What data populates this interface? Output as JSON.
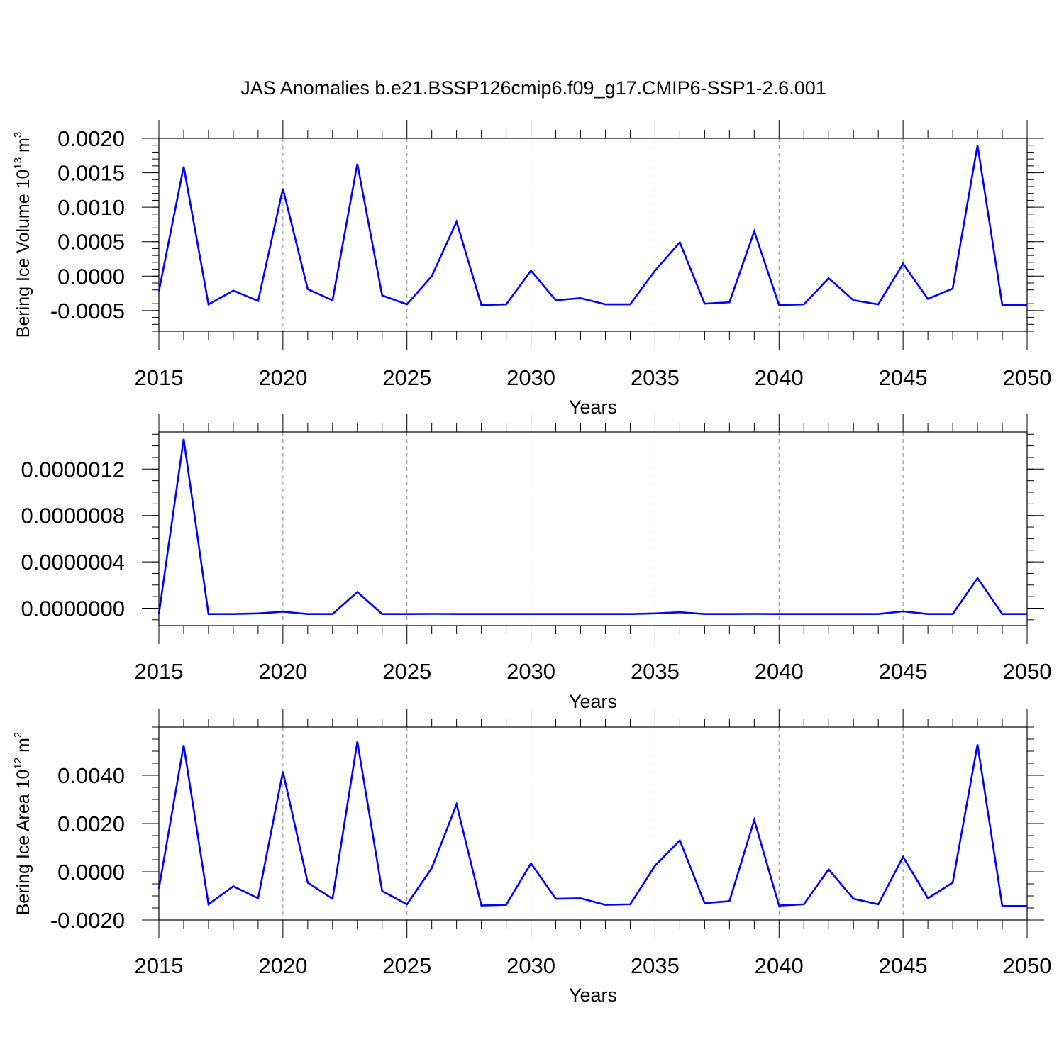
{
  "title": "JAS Anomalies b.e21.BSSP126cmip6.f09_g17.CMIP6-SSP1-2.6.001",
  "colors": {
    "line": "#0000ff",
    "axis": "#000000",
    "grid": "#888888"
  },
  "x_years": [
    2015,
    2016,
    2017,
    2018,
    2019,
    2020,
    2021,
    2022,
    2023,
    2024,
    2025,
    2026,
    2027,
    2028,
    2029,
    2030,
    2031,
    2032,
    2033,
    2034,
    2035,
    2036,
    2037,
    2038,
    2039,
    2040,
    2041,
    2042,
    2043,
    2044,
    2045,
    2046,
    2047,
    2048,
    2049,
    2050
  ],
  "chart_data": [
    {
      "type": "line",
      "title": "JAS Anomalies b.e21.BSSP126cmip6.f09_g17.CMIP6-SSP1-2.6.001",
      "ylabel": {
        "text": "Bering Ice Volume 10",
        "sup1": "13",
        "text2": " m",
        "sup2": "3"
      },
      "xlabel": "Years",
      "xlim": [
        2015,
        2050
      ],
      "ylim": [
        -0.0008,
        0.002
      ],
      "xticks": [
        "2015",
        "2020",
        "2025",
        "2030",
        "2035",
        "2040",
        "2045",
        "2050"
      ],
      "yticks": [
        {
          "value": 0.002,
          "label": "0.0020"
        },
        {
          "value": 0.0015,
          "label": "0.0015"
        },
        {
          "value": 0.001,
          "label": "0.0010"
        },
        {
          "value": 0.0005,
          "label": "0.0005"
        },
        {
          "value": 0.0,
          "label": "0.0000"
        },
        {
          "value": -0.0005,
          "label": "-0.0005"
        }
      ],
      "minor_step": 0.0001,
      "values": [
        -0.00022,
        0.00159,
        -0.00041,
        -0.00021,
        -0.00036,
        0.00127,
        -0.00019,
        -0.00035,
        0.00163,
        -0.00028,
        -0.00041,
        0.0,
        0.00079,
        -0.00042,
        -0.00041,
        8e-05,
        -0.00035,
        -0.00032,
        -0.00041,
        -0.00041,
        8e-05,
        0.00049,
        -0.0004,
        -0.00038,
        0.00065,
        -0.00042,
        -0.00041,
        -3e-05,
        -0.00035,
        -0.00041,
        0.00018,
        -0.00033,
        -0.00018,
        0.0019,
        -0.00042,
        -0.00042
      ]
    },
    {
      "type": "line",
      "xlabel": "Years",
      "xlim": [
        2015,
        2050
      ],
      "ylim": [
        -1.5e-07,
        1.52e-06
      ],
      "xticks": [
        "2015",
        "2020",
        "2025",
        "2030",
        "2035",
        "2040",
        "2045",
        "2050"
      ],
      "yticks": [
        {
          "value": 1.2e-06,
          "label": "0.0000012"
        },
        {
          "value": 8e-07,
          "label": "0.0000008"
        },
        {
          "value": 4e-07,
          "label": "0.0000004"
        },
        {
          "value": 0.0,
          "label": "0.0000000"
        }
      ],
      "minor_step": 1e-07,
      "values": [
        -5e-08,
        1.46e-06,
        -5e-08,
        -5e-08,
        -4.5e-08,
        -3e-08,
        -5e-08,
        -5e-08,
        1.4e-07,
        -5e-08,
        -5e-08,
        -4.9e-08,
        -5e-08,
        -5e-08,
        -5e-08,
        -5e-08,
        -5e-08,
        -5e-08,
        -5e-08,
        -5e-08,
        -4.5e-08,
        -3.5e-08,
        -5e-08,
        -5e-08,
        -4.9e-08,
        -5e-08,
        -5e-08,
        -5e-08,
        -5e-08,
        -5e-08,
        -2.7e-08,
        -5e-08,
        -5e-08,
        2.6e-07,
        -5e-08,
        -5e-08
      ]
    },
    {
      "type": "line",
      "ylabel": {
        "text": "Bering Ice Area 10",
        "sup1": "12",
        "text2": " m",
        "sup2": "2"
      },
      "xlabel": "Years",
      "xlim": [
        2015,
        2050
      ],
      "ylim": [
        -0.002,
        0.006
      ],
      "xticks": [
        "2015",
        "2020",
        "2025",
        "2030",
        "2035",
        "2040",
        "2045",
        "2050"
      ],
      "yticks": [
        {
          "value": 0.004,
          "label": "0.0040"
        },
        {
          "value": 0.002,
          "label": "0.0020"
        },
        {
          "value": 0.0,
          "label": "0.0000"
        },
        {
          "value": -0.002,
          "label": "-0.0020"
        }
      ],
      "minor_step": 0.0005,
      "values": [
        -0.0007,
        0.00525,
        -0.00135,
        -0.0006,
        -0.0011,
        0.00415,
        -0.00045,
        -0.00112,
        0.0054,
        -0.0008,
        -0.00135,
        0.00015,
        0.0028,
        -0.0014,
        -0.00137,
        0.00035,
        -0.00112,
        -0.0011,
        -0.00137,
        -0.00135,
        0.00025,
        0.0013,
        -0.0013,
        -0.00122,
        0.00215,
        -0.0014,
        -0.00135,
        0.0001,
        -0.00112,
        -0.00135,
        0.00062,
        -0.0011,
        -0.00045,
        0.00528,
        -0.00142,
        -0.00142
      ]
    }
  ]
}
